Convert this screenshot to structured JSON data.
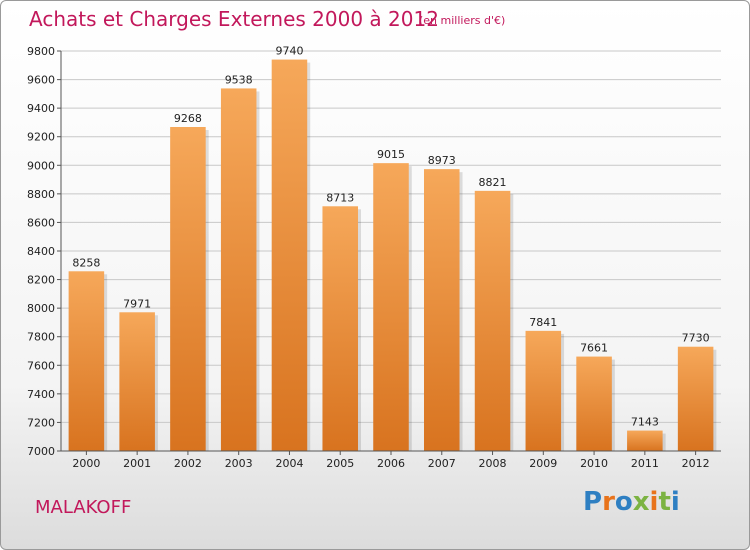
{
  "header": {
    "title": "Achats et Charges Externes 2000 à 2012",
    "unit": "(en milliers d'€)"
  },
  "footer": {
    "city": "MALAKOFF",
    "logo_text": "Proxiti"
  },
  "colors": {
    "title": "#c2185b",
    "bar_light": "#f6a85a",
    "bar_dark": "#d8731f",
    "grid": "#c8c8c8"
  },
  "chart_data": {
    "type": "bar",
    "title": "Achats et Charges Externes 2000 à 2012",
    "subtitle": "(en milliers d'€)",
    "xlabel": "",
    "ylabel": "",
    "categories": [
      "2000",
      "2001",
      "2002",
      "2003",
      "2004",
      "2005",
      "2006",
      "2007",
      "2008",
      "2009",
      "2010",
      "2011",
      "2012"
    ],
    "values": [
      8258,
      7971,
      9268,
      9538,
      9740,
      8713,
      9015,
      8973,
      8821,
      7841,
      7661,
      7143,
      7730
    ],
    "ylim": [
      7000,
      9800
    ],
    "yticks": [
      7000,
      7200,
      7400,
      7600,
      7800,
      8000,
      8200,
      8400,
      8600,
      8800,
      9000,
      9200,
      9400,
      9600,
      9800
    ],
    "grid": true,
    "data_labels": true
  }
}
